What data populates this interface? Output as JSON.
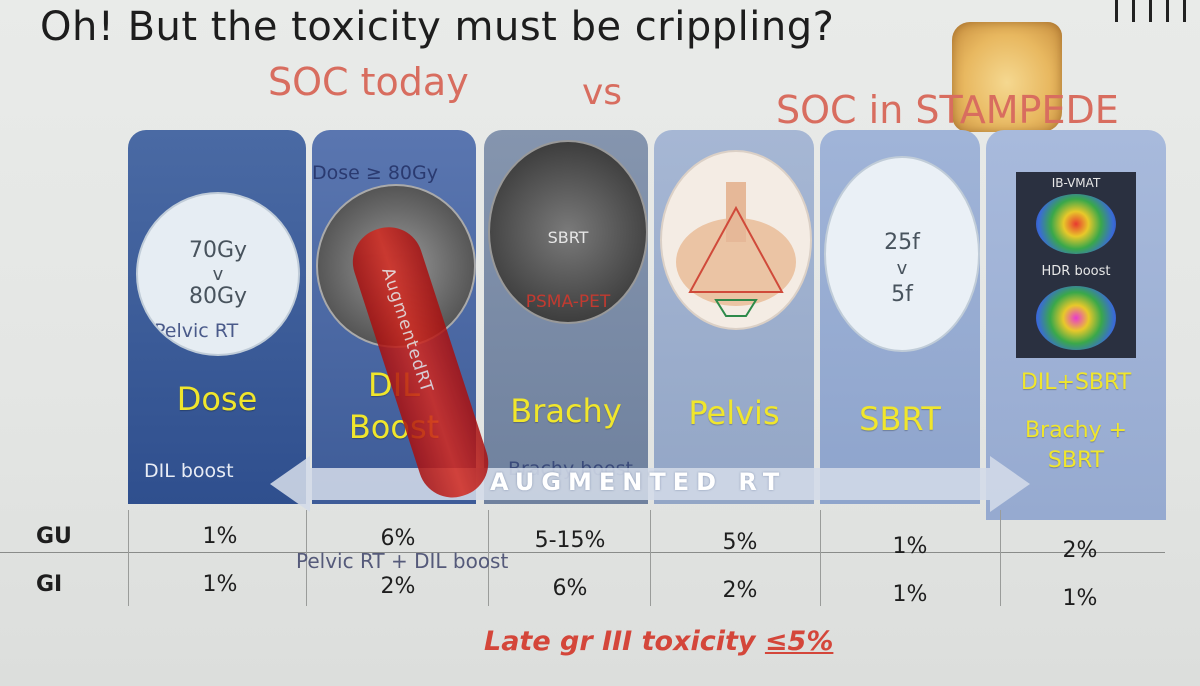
{
  "title": "Oh! But the toxicity must be crippling?",
  "subtitle": {
    "left": "SOC today",
    "middle": "vs",
    "right": "SOC in STAMPEDE"
  },
  "panels": [
    {
      "label": "Dose",
      "circle_lines": [
        "70Gy",
        "v",
        "80Gy"
      ],
      "note": "Pelvic RT",
      "bottom_note": "DIL boost"
    },
    {
      "label": "DIL Boost",
      "label_line1": "DIL",
      "label_line2": "Boost",
      "note": "Dose ≥ 80Gy"
    },
    {
      "label": "Brachy",
      "circle_note1": "SBRT",
      "circle_note2": "PSMA-PET",
      "bottom_note": "Brachy boost"
    },
    {
      "label": "Pelvis"
    },
    {
      "label": "SBRT",
      "circle_lines": [
        "25f",
        "v",
        "5f"
      ]
    },
    {
      "label": "DIL+SBRT",
      "label_line2": "Brachy +",
      "label_line3": "SBRT",
      "img_top": "IB-VMAT",
      "img_mid": "HDR boost"
    }
  ],
  "arrow_label": "AUGMENTED RT",
  "overlay_knife_text": "AugmentedRT",
  "pelvic_note": "Pelvic RT + DIL boost",
  "table": {
    "rows": [
      {
        "label": "GU",
        "values": [
          "1%",
          "6%",
          "5-15%",
          "5%",
          "1%",
          "2%"
        ]
      },
      {
        "label": "GI",
        "values": [
          "1%",
          "2%",
          "6%",
          "2%",
          "1%",
          "1%"
        ]
      }
    ]
  },
  "footer": {
    "prefix": "Late gr III toxicity ",
    "value": "≤5%"
  },
  "colors": {
    "accent_red": "#d86d5f",
    "label_yellow": "#f0e62c",
    "footer_red": "#d4463a"
  }
}
